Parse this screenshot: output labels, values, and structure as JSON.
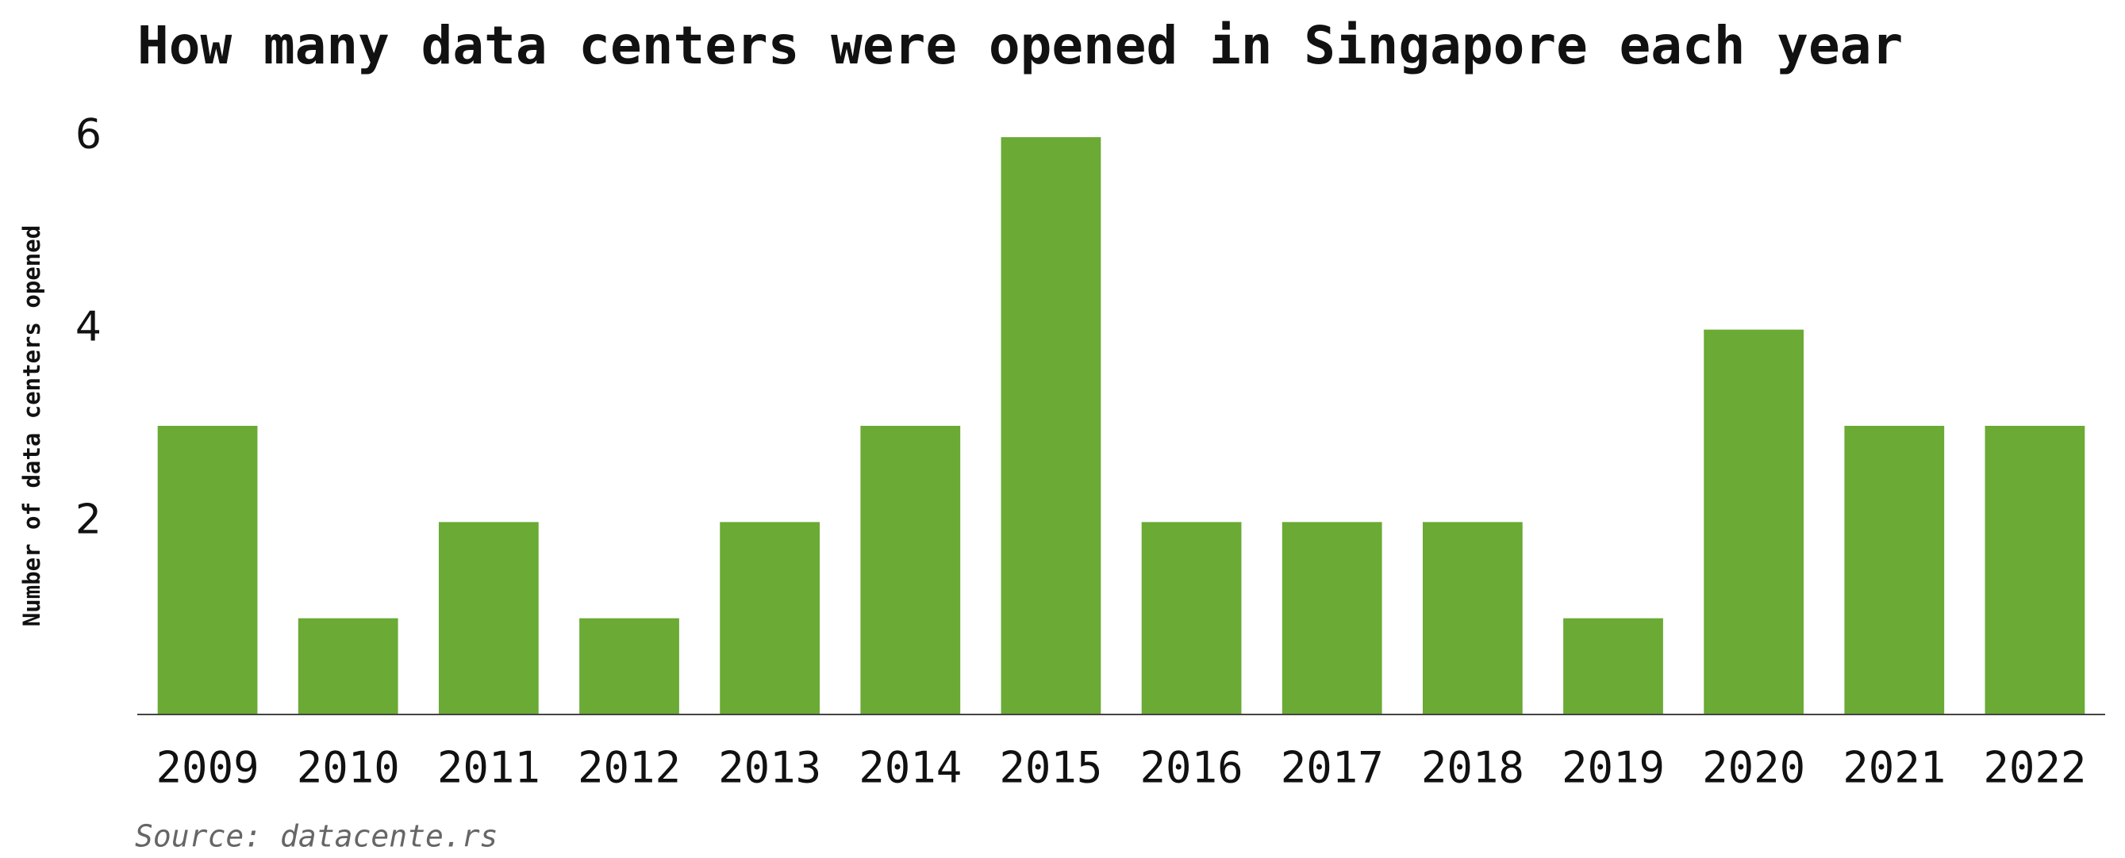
{
  "chart_data": {
    "type": "bar",
    "title": "How many data centers were opened in Singapore each year",
    "y_label": "Number of data centers opened",
    "source": "Source: datacente.rs",
    "categories": [
      "2009",
      "2010",
      "2011",
      "2012",
      "2013",
      "2014",
      "2015",
      "2016",
      "2017",
      "2018",
      "2019",
      "2020",
      "2021",
      "2022"
    ],
    "values": [
      3,
      1,
      2,
      1,
      2,
      3,
      6,
      2,
      2,
      2,
      1,
      4,
      3,
      3
    ],
    "color": "#6aaa35",
    "ylim": [
      0,
      6
    ],
    "yticks": [
      2,
      4,
      6
    ],
    "grid": false
  }
}
